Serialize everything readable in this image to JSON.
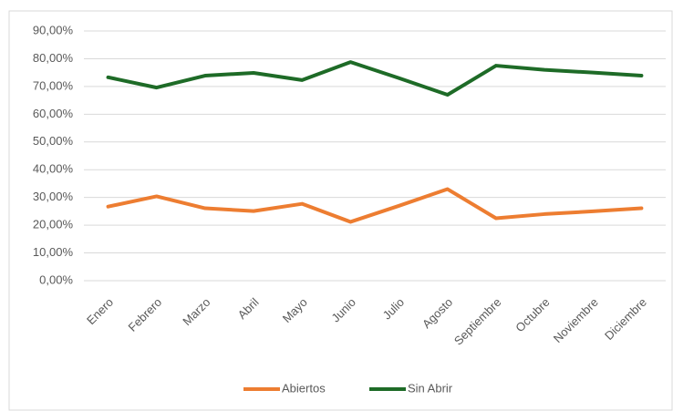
{
  "chart_data": {
    "type": "line",
    "categories": [
      "Enero",
      "Febrero",
      "Marzo",
      "Abril",
      "Mayo",
      "Junio",
      "Julio",
      "Agosto",
      "Septiembre",
      "Octubre",
      "Noviembre",
      "Diciembre"
    ],
    "series": [
      {
        "name": "Abiertos",
        "color": "#ed7d31",
        "values": [
          26.7,
          30.4,
          26.1,
          25.1,
          27.7,
          21.2,
          27.0,
          33.0,
          22.5,
          24.0,
          25.0,
          26.1
        ]
      },
      {
        "name": "Sin Abrir",
        "color": "#1e6b27",
        "values": [
          73.3,
          69.6,
          73.9,
          74.9,
          72.3,
          78.8,
          73.0,
          67.0,
          77.5,
          76.0,
          75.0,
          73.9
        ]
      }
    ],
    "ylim": [
      0,
      90
    ],
    "yticks": [
      {
        "value": 0,
        "label": "0,00%"
      },
      {
        "value": 10,
        "label": "10,00%"
      },
      {
        "value": 20,
        "label": "20,00%"
      },
      {
        "value": 30,
        "label": "30,00%"
      },
      {
        "value": 40,
        "label": "40,00%"
      },
      {
        "value": 50,
        "label": "50,00%"
      },
      {
        "value": 60,
        "label": "60,00%"
      },
      {
        "value": 70,
        "label": "70,00%"
      },
      {
        "value": 80,
        "label": "80,00%"
      },
      {
        "value": 90,
        "label": "90,00%"
      }
    ],
    "grid": true,
    "legend": "bottom"
  }
}
